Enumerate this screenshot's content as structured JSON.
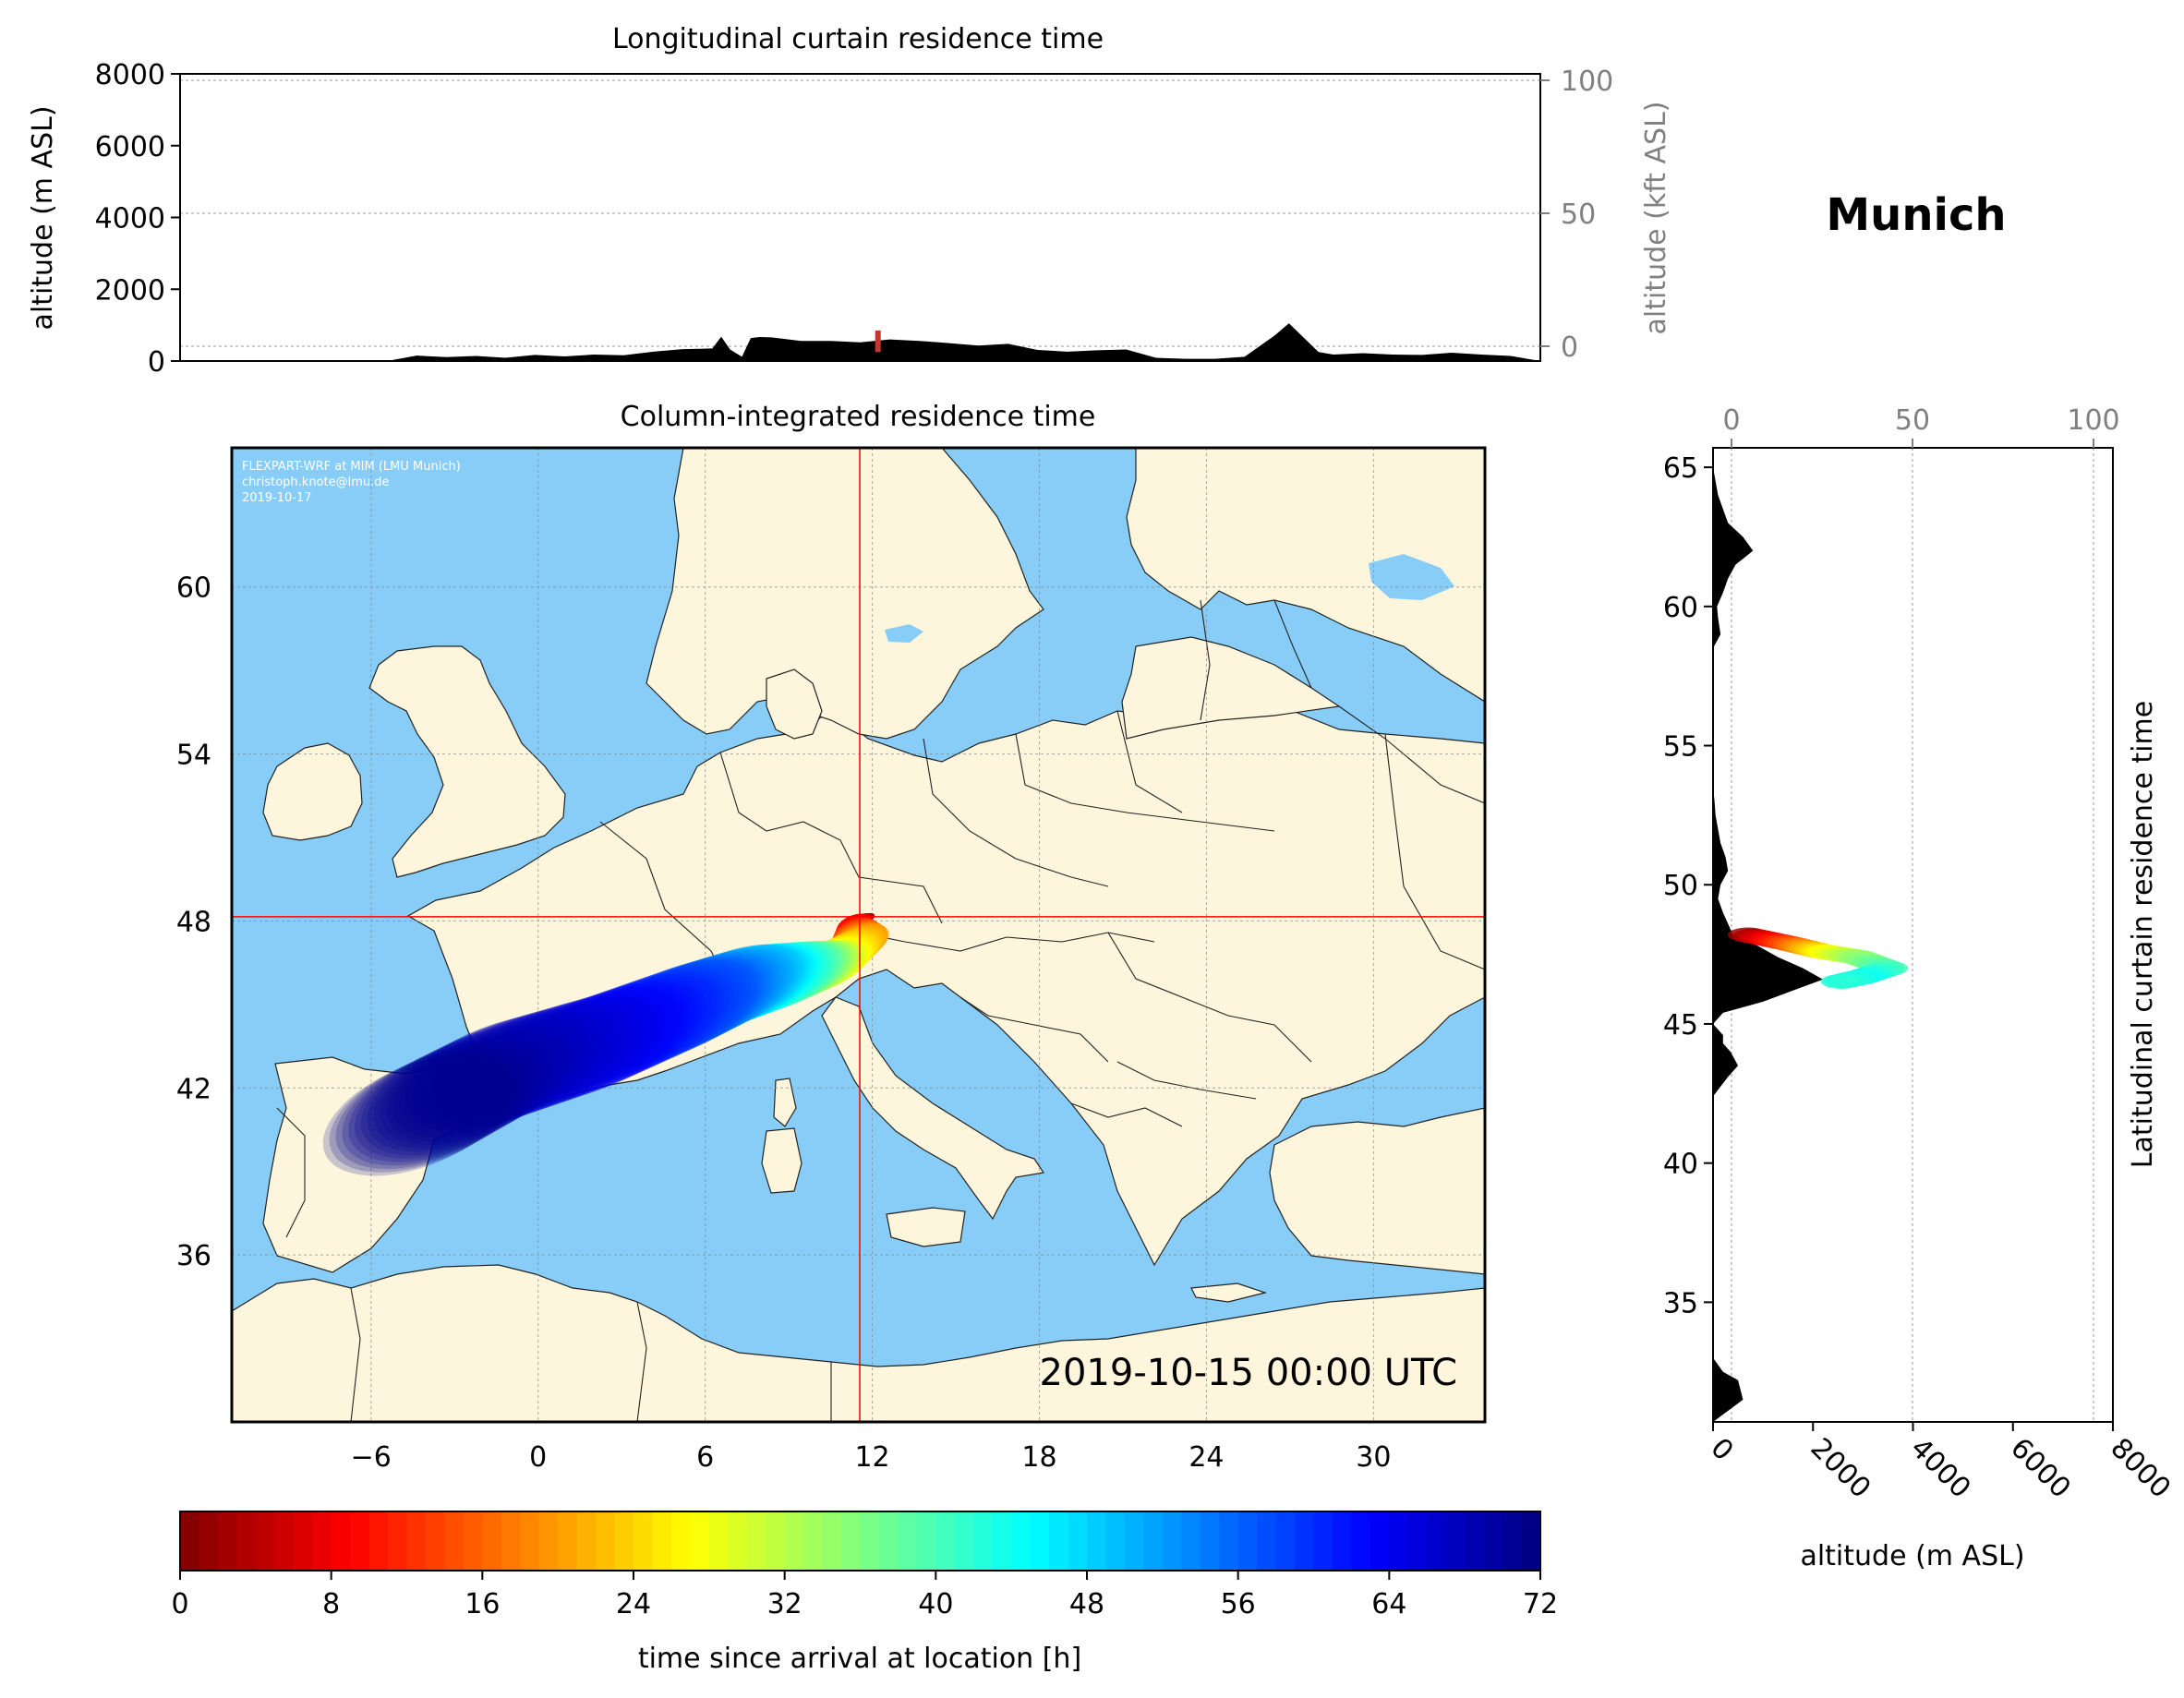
{
  "location_title": "Munich",
  "timestamp": "2019-10-15 00:00 UTC",
  "credit": [
    "FLEXPART-WRF at MIM (LMU Munich)",
    "christoph.knote@lmu.de",
    "2019-10-17"
  ],
  "colors": {
    "ocean": "#87cdf8",
    "land": "#fdf6dc",
    "border": "#222222",
    "crosshair": "#ff0000",
    "terrain": "#000000"
  },
  "chart_data": [
    {
      "type": "area",
      "title": "Longitudinal curtain residence time",
      "xlabel": "",
      "ylabel": "altitude (m ASL)",
      "y2label": "altitude (kft ASL)",
      "xlim": [
        -12,
        34
      ],
      "ylim": [
        0,
        8000
      ],
      "yticks": [
        0,
        2000,
        4000,
        6000,
        8000
      ],
      "y2lim": [
        -0.4,
        26.2
      ],
      "y2ticks": [
        0,
        50,
        100
      ],
      "y2_ref_m": [
        0,
        15240,
        30480
      ],
      "terrain": {
        "x": [
          -12,
          -5,
          -4,
          -3,
          -2,
          -1,
          0,
          1,
          2,
          3,
          4,
          5,
          6,
          6.3,
          6.6,
          7,
          7.3,
          7.6,
          8,
          9,
          10,
          11,
          12,
          13,
          14,
          15,
          16,
          17,
          18,
          19,
          20,
          21,
          22,
          23,
          24,
          25,
          25.5,
          26,
          26.5,
          27,
          28,
          29,
          30,
          31,
          32,
          33,
          34
        ],
        "y": [
          0,
          0,
          150,
          110,
          140,
          90,
          170,
          130,
          180,
          160,
          260,
          330,
          350,
          680,
          320,
          120,
          640,
          670,
          660,
          560,
          560,
          520,
          600,
          560,
          500,
          430,
          480,
          310,
          260,
          300,
          320,
          90,
          60,
          60,
          120,
          700,
          1050,
          650,
          250,
          180,
          220,
          180,
          170,
          230,
          180,
          140,
          0
        ]
      },
      "release_marker": {
        "x": 11.6,
        "y": [
          250,
          850
        ],
        "color": "#c0392b"
      }
    },
    {
      "type": "heatmap",
      "title": "Column-integrated residence time",
      "xlim": [
        -11,
        34
      ],
      "ylim": [
        30,
        65
      ],
      "xticks": [
        -6,
        0,
        6,
        12,
        18,
        24,
        30
      ],
      "yticks": [
        36,
        42,
        48,
        54,
        60
      ],
      "release_point": {
        "lon": 11.55,
        "lat": 48.15
      },
      "colorbar": {
        "label": "time since arrival at location [h]",
        "range": [
          0,
          72
        ],
        "ticks": [
          0,
          8,
          16,
          24,
          32,
          40,
          48,
          56,
          64,
          72
        ],
        "colormap": "jet"
      },
      "plume": [
        {
          "lon": 11.8,
          "lat": 48.1,
          "hours": 2
        },
        {
          "lon": 11.3,
          "lat": 47.9,
          "hours": 8
        },
        {
          "lon": 11.5,
          "lat": 47.2,
          "hours": 20
        },
        {
          "lon": 10.4,
          "lat": 46.4,
          "hours": 28
        },
        {
          "lon": 8.8,
          "lat": 46.0,
          "hours": 40
        },
        {
          "lon": 7.0,
          "lat": 45.6,
          "hours": 50
        },
        {
          "lon": 5.0,
          "lat": 44.8,
          "hours": 58
        },
        {
          "lon": 2.0,
          "lat": 43.6,
          "hours": 64
        },
        {
          "lon": -1.5,
          "lat": 42.5,
          "hours": 68
        },
        {
          "lon": -4.5,
          "lat": 40.9,
          "hours": 72
        }
      ]
    },
    {
      "type": "area",
      "title": "Latitudinal curtain residence time",
      "xlabel": "altitude (m ASL)",
      "x2label": "",
      "xlim": [
        0,
        8000
      ],
      "xticks": [
        0,
        2000,
        4000,
        6000,
        8000
      ],
      "x2ticks": [
        0,
        50,
        100
      ],
      "x2_ref_m": [
        0,
        15240,
        30480
      ],
      "ylim": [
        30.7,
        65.7
      ],
      "yticks": [
        35,
        40,
        45,
        50,
        55,
        60,
        65
      ],
      "terrain": {
        "lat": [
          30.7,
          31.5,
          32.2,
          32.5,
          33,
          40,
          42.4,
          43.1,
          43.5,
          44,
          44.3,
          44.6,
          45,
          45.4,
          45.8,
          46.2,
          46.6,
          47,
          47.4,
          47.8,
          48.2,
          48.6,
          49,
          49.5,
          50,
          50.5,
          51,
          51.5,
          52,
          52.5,
          53,
          53.5,
          57,
          58.5,
          59,
          59.6,
          60,
          60.5,
          61,
          61.5,
          62,
          62.5,
          63,
          63.5,
          64,
          64.5,
          65,
          65.7
        ],
        "alt": [
          0,
          600,
          500,
          200,
          0,
          0,
          0,
          300,
          500,
          350,
          200,
          200,
          0,
          200,
          1000,
          1600,
          2200,
          1800,
          1300,
          900,
          400,
          300,
          200,
          100,
          150,
          300,
          250,
          150,
          100,
          50,
          30,
          0,
          0,
          0,
          150,
          100,
          80,
          200,
          300,
          450,
          800,
          600,
          300,
          200,
          100,
          50,
          0,
          0
        ]
      },
      "plume": [
        {
          "lat": 48.2,
          "alt": 700,
          "hours": 2
        },
        {
          "lat": 47.9,
          "alt": 1500,
          "hours": 14
        },
        {
          "lat": 47.6,
          "alt": 2200,
          "hours": 26
        },
        {
          "lat": 47.4,
          "alt": 2900,
          "hours": 34
        },
        {
          "lat": 47.0,
          "alt": 3500,
          "hours": 40
        },
        {
          "lat": 46.7,
          "alt": 3000,
          "hours": 44
        },
        {
          "lat": 46.5,
          "alt": 2500,
          "hours": 42
        }
      ]
    }
  ]
}
